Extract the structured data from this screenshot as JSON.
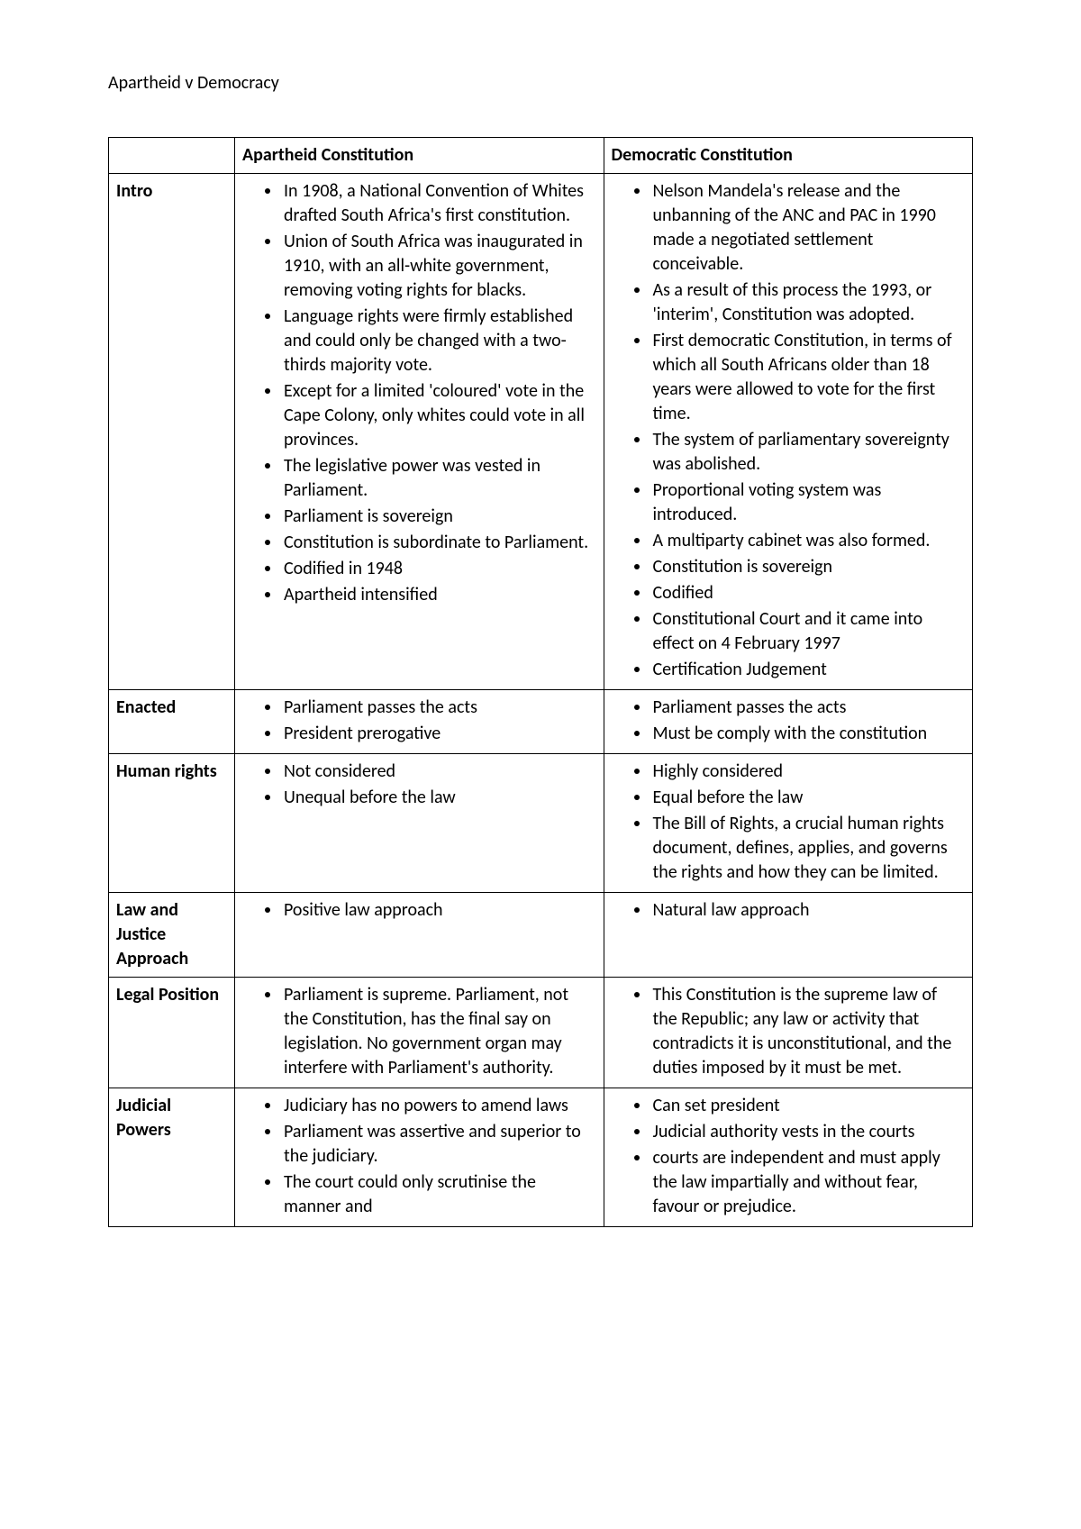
{
  "page_title": "Apartheid v Democracy",
  "columns": {
    "left_header": "Apartheid Constitution",
    "right_header": "Democratic Constitution"
  },
  "rows": [
    {
      "label": "Intro",
      "left": [
        "In 1908, a National Convention of Whites drafted South Africa's first constitution.",
        "Union of South Africa was inaugurated in 1910, with an all-white government, removing voting rights for blacks.",
        "Language rights were firmly established and could only be changed with a two-thirds majority vote.",
        "Except for a limited 'coloured' vote in the Cape Colony, only whites could vote in all provinces.",
        "The legislative power was vested in Parliament.",
        "Parliament is sovereign",
        "Constitution is subordinate to Parliament.",
        "Codified in 1948",
        "Apartheid intensified"
      ],
      "right": [
        "Nelson Mandela's release and the unbanning of the ANC and PAC in 1990 made a negotiated settlement conceivable.",
        "As a result of this process the 1993, or 'interim', Constitution was adopted.",
        "First democratic Constitution, in terms of which all South Africans older than 18 years were allowed to vote for the first time.",
        "The system of parliamentary sovereignty was abolished.",
        "Proportional voting system was introduced.",
        "A multiparty cabinet was also formed.",
        "Constitution is sovereign",
        "Codified",
        "Constitutional Court and it came into effect on 4 February 1997",
        "Certification Judgement"
      ]
    },
    {
      "label": "Enacted",
      "left": [
        "Parliament passes the acts",
        "President prerogative"
      ],
      "right": [
        "Parliament passes the acts",
        "Must be comply with the constitution"
      ]
    },
    {
      "label": "Human rights",
      "left": [
        "Not considered",
        "Unequal before the law"
      ],
      "right": [
        "Highly considered",
        "Equal before the law",
        "The Bill of Rights, a crucial human rights document, defines, applies, and governs the rights and how they can be limited."
      ]
    },
    {
      "label": "Law and Justice Approach",
      "left": [
        "Positive law approach"
      ],
      "right": [
        "Natural law approach"
      ]
    },
    {
      "label": "Legal Position",
      "left": [
        "Parliament is supreme. Parliament, not the Constitution, has the final say on legislation. No government organ may interfere with Parliament's authority."
      ],
      "right": [
        "This Constitution is the supreme law of the Republic; any law or activity that contradicts it is unconstitutional, and the duties imposed by it must be met."
      ]
    },
    {
      "label": "Judicial Powers",
      "left": [
        "Judiciary has no powers to amend laws",
        "Parliament was assertive and superior to the judiciary.",
        "The court could only scrutinise the manner and"
      ],
      "right": [
        "Can set president",
        "Judicial authority vests in the courts",
        "courts are independent and must apply the law impartially and without fear, favour or prejudice."
      ]
    }
  ]
}
